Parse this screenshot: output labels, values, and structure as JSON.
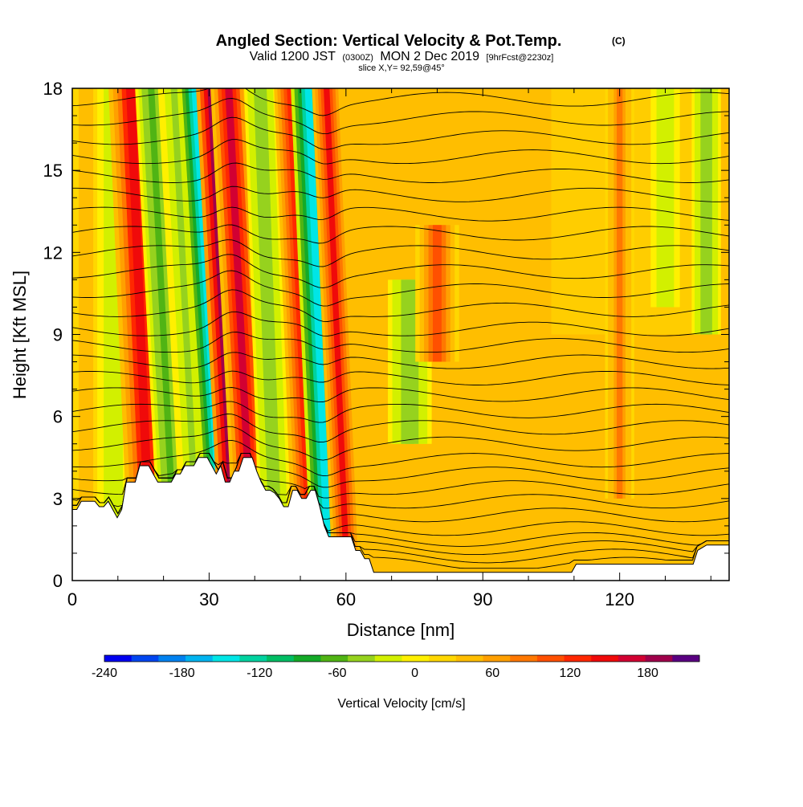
{
  "header": {
    "title": "Angled Section: Vertical Velocity & Pot.Temp.",
    "title_unit": "(C)",
    "valid_prefix": "Valid 1200 JST",
    "valid_utc": "(0300Z)",
    "valid_date": "MON 2 Dec 2019",
    "forecast": "[9hrFcst@2230z]",
    "slice": "slice X,Y= 92,59@45°"
  },
  "chart_data": {
    "type": "heatmap",
    "xlabel": "Distance [nm]",
    "ylabel": "Height [Kft MSL]",
    "xlim": [
      0,
      144
    ],
    "ylim": [
      0,
      18
    ],
    "xticks": [
      0,
      30,
      60,
      90,
      120
    ],
    "yticks": [
      0,
      3,
      6,
      9,
      12,
      15,
      18
    ],
    "x_minor_step": 10,
    "y_minor_step": 1,
    "colorbar": {
      "label": "Vertical Velocity [cm/s]",
      "min": -240,
      "max": 220,
      "step": 20,
      "tick_values": [
        -240,
        -180,
        -120,
        -60,
        0,
        60,
        120,
        180
      ],
      "colors": [
        "#0000f0",
        "#0046f0",
        "#0082f0",
        "#00b4f0",
        "#00e6e6",
        "#00d2a0",
        "#00be64",
        "#14aa28",
        "#50b414",
        "#96d21e",
        "#d2f000",
        "#fff000",
        "#ffd700",
        "#ffbe00",
        "#ffa000",
        "#ff7800",
        "#ff5000",
        "#ff2800",
        "#f00a0a",
        "#d20032",
        "#a0004b",
        "#5a0082"
      ]
    },
    "bands": [
      {
        "x": 3,
        "w": 2.5,
        "v": 30,
        "lean": 0,
        "bottom": 0,
        "top": 18
      },
      {
        "x": 9,
        "w": 2.2,
        "v": -40,
        "lean": 0,
        "bottom": 0,
        "top": 18
      },
      {
        "x": 15,
        "w": 3.0,
        "v": 130,
        "lean": 0.25,
        "bottom": 0,
        "top": 18
      },
      {
        "x": 20,
        "w": 2.2,
        "v": -70,
        "lean": 0.3,
        "bottom": 0,
        "top": 18
      },
      {
        "x": 25,
        "w": 2.2,
        "v": -50,
        "lean": 0.3,
        "bottom": 0,
        "top": 18
      },
      {
        "x": 30,
        "w": 2.2,
        "v": -160,
        "lean": 0.35,
        "bottom": 0,
        "top": 18
      },
      {
        "x": 34,
        "w": 2.6,
        "v": 210,
        "lean": 0.3,
        "bottom": 0,
        "top": 18
      },
      {
        "x": 37,
        "w": 2.5,
        "v": 140,
        "lean": 0.3,
        "bottom": 0,
        "top": 18
      },
      {
        "x": 43,
        "w": 2.2,
        "v": -60,
        "lean": 0.2,
        "bottom": 0,
        "top": 18
      },
      {
        "x": 50,
        "w": 2.2,
        "v": 100,
        "lean": 0.25,
        "bottom": 0,
        "top": 18
      },
      {
        "x": 54,
        "w": 2.4,
        "v": -160,
        "lean": 0.25,
        "bottom": 0,
        "top": 18
      },
      {
        "x": 58,
        "w": 2.0,
        "v": 120,
        "lean": 0.25,
        "bottom": 0,
        "top": 18
      },
      {
        "x": 74,
        "w": 3.0,
        "v": -60,
        "lean": 0,
        "bottom": 5,
        "top": 11
      },
      {
        "x": 80,
        "w": 3.0,
        "v": 80,
        "lean": 0,
        "bottom": 8,
        "top": 13
      },
      {
        "x": 120,
        "w": 2.0,
        "v": 60,
        "lean": 0,
        "bottom": 3,
        "top": 18
      },
      {
        "x": 130,
        "w": 2.0,
        "v": -40,
        "lean": 0,
        "bottom": 10,
        "top": 18
      },
      {
        "x": 139,
        "w": 2.0,
        "v": -60,
        "lean": 0,
        "bottom": 9,
        "top": 18
      }
    ],
    "terrain_kft": [
      2.6,
      2.6,
      2.9,
      2.9,
      2.9,
      2.9,
      2.7,
      2.7,
      2.9,
      2.6,
      2.3,
      2.6,
      3.6,
      3.6,
      3.6,
      4.2,
      4.2,
      4.2,
      3.9,
      3.6,
      3.6,
      3.6,
      3.6,
      3.9,
      3.9,
      4.2,
      4.2,
      4.2,
      4.5,
      4.5,
      4.5,
      4.2,
      3.9,
      4.2,
      3.6,
      3.6,
      4.0,
      4.0,
      4.5,
      4.5,
      4.5,
      4.0,
      3.6,
      3.3,
      3.3,
      3.2,
      3.0,
      2.7,
      2.7,
      3.3,
      3.3,
      3.0,
      3.0,
      3.3,
      3.3,
      2.7,
      2.0,
      1.6,
      1.6,
      1.6,
      1.6,
      1.6,
      1.6,
      1.1,
      1.1,
      0.8,
      0.8,
      0.3,
      0.3,
      0.3,
      0.3,
      0.3,
      0.3,
      0.3,
      0.3,
      0.3,
      0.3,
      0.3,
      0.3,
      0.3,
      0.3,
      0.3,
      0.3,
      0.3,
      0.3,
      0.3,
      0.3,
      0.3,
      0.3,
      0.3,
      0.3,
      0.3,
      0.3,
      0.3,
      0.3,
      0.3,
      0.3,
      0.3,
      0.3,
      0.3,
      0.3,
      0.3,
      0.3,
      0.3,
      0.3,
      0.3,
      0.3,
      0.3,
      0.3,
      0.3,
      0.3,
      0.3,
      0.6,
      0.6,
      0.6,
      0.6,
      0.6,
      0.6,
      0.6,
      0.6,
      0.6,
      0.6,
      0.6,
      0.6,
      0.6,
      0.6,
      0.6,
      0.6,
      0.6,
      0.6,
      0.6,
      0.6,
      0.6,
      0.6,
      0.6,
      0.6,
      0.6,
      0.6,
      0.6,
      1.1,
      1.2,
      1.3,
      1.3,
      1.3,
      1.3,
      1.3,
      1.3
    ],
    "contour_levels_kft": [
      0.6,
      0.9,
      1.2,
      1.5,
      1.9,
      2.4,
      2.9,
      3.4,
      3.9,
      4.4,
      5.0,
      5.6,
      6.2,
      6.8,
      7.4,
      8.0,
      8.6,
      9.2,
      9.9,
      10.6,
      11.3,
      12.0,
      12.7,
      13.4,
      14.1,
      14.8,
      15.5,
      16.2,
      16.9,
      17.6
    ]
  }
}
